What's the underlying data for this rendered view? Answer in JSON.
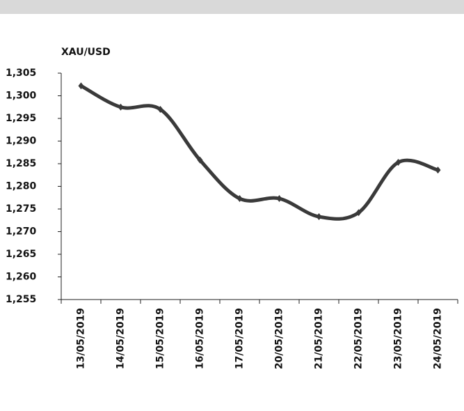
{
  "chart_data": {
    "type": "line",
    "title": "XAU/USD",
    "categories": [
      "13/05/2019",
      "14/05/2019",
      "15/05/2019",
      "16/05/2019",
      "17/05/2019",
      "20/05/2019",
      "21/05/2019",
      "22/05/2019",
      "23/05/2019",
      "24/05/2019"
    ],
    "values": [
      1302.2,
      1297.5,
      1297.0,
      1285.8,
      1277.3,
      1277.3,
      1273.3,
      1274.2,
      1285.3,
      1283.6
    ],
    "color": "#3a3a3a",
    "smooth": true,
    "ylim": [
      1255,
      1305
    ],
    "yticks": [
      {
        "value": 1255,
        "label": "1,255"
      },
      {
        "value": 1260,
        "label": "1,260"
      },
      {
        "value": 1265,
        "label": "1,265"
      },
      {
        "value": 1270,
        "label": "1,270"
      },
      {
        "value": 1275,
        "label": "1,275"
      },
      {
        "value": 1280,
        "label": "1,280"
      },
      {
        "value": 1285,
        "label": "1,285"
      },
      {
        "value": 1290,
        "label": "1,290"
      },
      {
        "value": 1295,
        "label": "1,295"
      },
      {
        "value": 1300,
        "label": "1,300"
      },
      {
        "value": 1305,
        "label": "1,305"
      }
    ]
  }
}
